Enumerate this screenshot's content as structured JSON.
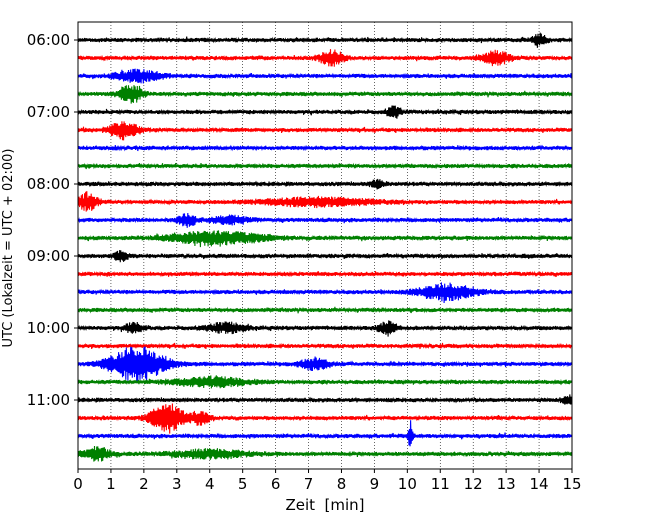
{
  "chart_data": {
    "type": "line",
    "title": "",
    "xlabel": "Zeit  [min]",
    "ylabel": "UTC (Lokalzeit = UTC + 02:00)",
    "xlim": [
      0,
      15
    ],
    "x_ticks": [
      "0",
      "1",
      "2",
      "3",
      "4",
      "5",
      "6",
      "7",
      "8",
      "9",
      "10",
      "11",
      "12",
      "13",
      "14",
      "15"
    ],
    "y_tick_labels": [
      "06:00",
      "07:00",
      "08:00",
      "09:00",
      "10:00",
      "11:00"
    ],
    "trace_interval_min": 15,
    "start_time_utc": "06:00",
    "grid_x": true,
    "trace_colors": [
      "#000000",
      "#ff0000",
      "#0000ff",
      "#008000"
    ],
    "traces": [
      {
        "start": "06:00",
        "events": [
          {
            "t": 14.0,
            "amp": 0.8,
            "w": 0.15
          }
        ]
      },
      {
        "start": "06:15",
        "events": [
          {
            "t": 7.7,
            "amp": 0.9,
            "w": 0.25
          },
          {
            "t": 12.7,
            "amp": 0.8,
            "w": 0.3
          }
        ]
      },
      {
        "start": "06:30",
        "events": [
          {
            "t": 1.8,
            "amp": 0.7,
            "w": 0.5
          }
        ]
      },
      {
        "start": "06:45",
        "events": [
          {
            "t": 1.6,
            "amp": 1.1,
            "w": 0.25
          }
        ]
      },
      {
        "start": "07:00",
        "events": [
          {
            "t": 9.6,
            "amp": 0.7,
            "w": 0.15
          }
        ]
      },
      {
        "start": "07:15",
        "events": [
          {
            "t": 1.4,
            "amp": 1.1,
            "w": 0.3
          }
        ]
      },
      {
        "start": "07:30",
        "events": []
      },
      {
        "start": "07:45",
        "events": []
      },
      {
        "start": "08:00",
        "events": [
          {
            "t": 9.1,
            "amp": 0.5,
            "w": 0.15
          }
        ]
      },
      {
        "start": "08:15",
        "events": [
          {
            "t": 0.3,
            "amp": 1.1,
            "w": 0.2
          },
          {
            "t": 7.3,
            "amp": 0.5,
            "w": 1.2
          }
        ]
      },
      {
        "start": "08:30",
        "events": [
          {
            "t": 3.3,
            "amp": 0.7,
            "w": 0.2
          },
          {
            "t": 4.6,
            "amp": 0.5,
            "w": 0.4
          }
        ]
      },
      {
        "start": "08:45",
        "events": [
          {
            "t": 4.2,
            "amp": 0.8,
            "w": 1.0
          }
        ]
      },
      {
        "start": "09:00",
        "events": [
          {
            "t": 1.3,
            "amp": 0.6,
            "w": 0.15
          }
        ]
      },
      {
        "start": "09:15",
        "events": []
      },
      {
        "start": "09:30",
        "events": [
          {
            "t": 11.2,
            "amp": 1.0,
            "w": 0.6
          }
        ]
      },
      {
        "start": "09:45",
        "events": []
      },
      {
        "start": "10:00",
        "events": [
          {
            "t": 1.7,
            "amp": 0.6,
            "w": 0.2
          },
          {
            "t": 4.5,
            "amp": 0.6,
            "w": 0.4
          },
          {
            "t": 9.4,
            "amp": 0.7,
            "w": 0.2
          }
        ]
      },
      {
        "start": "10:15",
        "events": []
      },
      {
        "start": "10:30",
        "events": [
          {
            "t": 1.8,
            "amp": 2.1,
            "w": 0.6
          },
          {
            "t": 7.2,
            "amp": 0.7,
            "w": 0.3
          }
        ]
      },
      {
        "start": "10:45",
        "events": [
          {
            "t": 4.0,
            "amp": 0.6,
            "w": 0.8
          }
        ]
      },
      {
        "start": "11:00",
        "events": [
          {
            "t": 14.9,
            "amp": 0.5,
            "w": 0.15
          }
        ]
      },
      {
        "start": "11:15",
        "events": [
          {
            "t": 2.7,
            "amp": 1.8,
            "w": 0.35
          },
          {
            "t": 3.7,
            "amp": 0.8,
            "w": 0.2
          }
        ]
      },
      {
        "start": "11:30",
        "events": [
          {
            "t": 10.1,
            "amp": 2.4,
            "w": 0.04
          }
        ]
      },
      {
        "start": "11:45",
        "events": [
          {
            "t": 0.6,
            "amp": 0.8,
            "w": 0.3
          },
          {
            "t": 4.0,
            "amp": 0.5,
            "w": 0.8
          }
        ]
      }
    ]
  }
}
